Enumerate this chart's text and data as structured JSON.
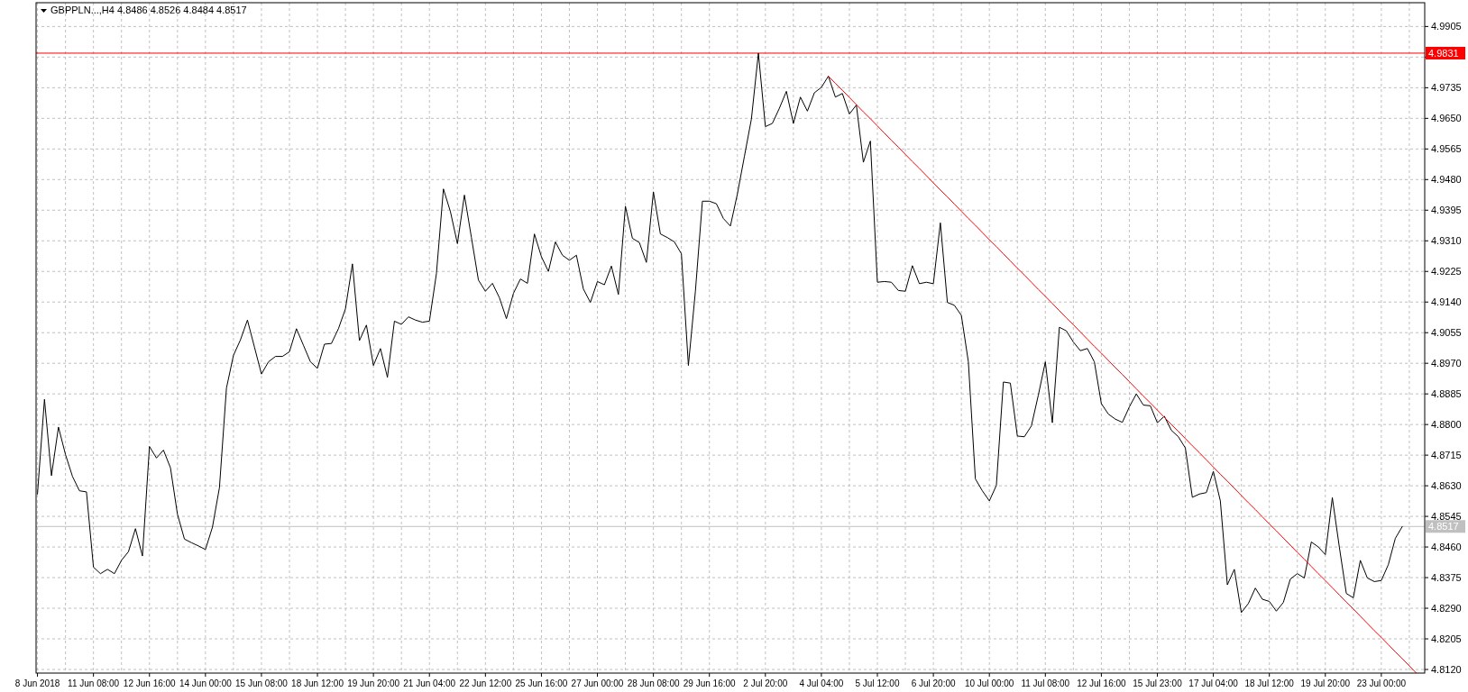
{
  "chart_data": {
    "type": "line",
    "title": "GBPPLN...,H4  4.8486 4.8526 4.8484 4.8517",
    "categories": [
      "8 Jun 2018",
      null,
      null,
      null,
      null,
      null,
      null,
      null,
      "11 Jun 08:00",
      null,
      null,
      null,
      null,
      null,
      null,
      null,
      "12 Jun 16:00",
      null,
      null,
      null,
      null,
      null,
      null,
      null,
      "14 Jun 00:00",
      null,
      null,
      null,
      null,
      null,
      null,
      null,
      "15 Jun 08:00",
      null,
      null,
      null,
      null,
      null,
      null,
      null,
      "18 Jun 12:00",
      null,
      null,
      null,
      null,
      null,
      null,
      null,
      "19 Jun 20:00",
      null,
      null,
      null,
      null,
      null,
      null,
      null,
      "21 Jun 04:00",
      null,
      null,
      null,
      null,
      null,
      null,
      null,
      "22 Jun 12:00",
      null,
      null,
      null,
      null,
      null,
      null,
      null,
      "25 Jun 16:00",
      null,
      null,
      null,
      null,
      null,
      null,
      null,
      "27 Jun 00:00",
      null,
      null,
      null,
      null,
      null,
      null,
      null,
      "28 Jun 08:00",
      null,
      null,
      null,
      null,
      null,
      null,
      null,
      "29 Jun 16:00",
      null,
      null,
      null,
      null,
      null,
      null,
      null,
      "2 Jul 20:00",
      null,
      null,
      null,
      null,
      null,
      null,
      null,
      "4 Jul 04:00",
      null,
      null,
      null,
      null,
      null,
      null,
      null,
      "5 Jul 12:00",
      null,
      null,
      null,
      null,
      null,
      null,
      null,
      "6 Jul 20:00",
      null,
      null,
      null,
      null,
      null,
      null,
      null,
      "10 Jul 00:00",
      null,
      null,
      null,
      null,
      null,
      null,
      null,
      "11 Jul 08:00",
      null,
      null,
      null,
      null,
      null,
      null,
      null,
      "12 Jul 16:00",
      null,
      null,
      null,
      null,
      null,
      null,
      null,
      "15 Jul 23:00",
      null,
      null,
      null,
      null,
      null,
      null,
      null,
      "17 Jul 04:00",
      null,
      null,
      null,
      null,
      null,
      null,
      null,
      "18 Jul 12:00",
      null,
      null,
      null,
      null,
      null,
      null,
      null,
      "19 Jul 20:00",
      null,
      null,
      null,
      null,
      null,
      null,
      null,
      "23 Jul 00:00",
      null,
      null,
      null,
      null,
      null,
      null
    ],
    "ylim": [
      4.811,
      4.9971
    ],
    "yticks": [
      {
        "value": 4.9905,
        "label": "4.9905"
      },
      {
        "value": 4.982,
        "label": null
      },
      {
        "value": 4.9735,
        "label": "4.9735"
      },
      {
        "value": 4.965,
        "label": "4.9650"
      },
      {
        "value": 4.9565,
        "label": "4.9565"
      },
      {
        "value": 4.948,
        "label": "4.9480"
      },
      {
        "value": 4.9395,
        "label": "4.9395"
      },
      {
        "value": 4.931,
        "label": "4.9310"
      },
      {
        "value": 4.9225,
        "label": "4.9225"
      },
      {
        "value": 4.914,
        "label": "4.9140"
      },
      {
        "value": 4.9055,
        "label": "4.9055"
      },
      {
        "value": 4.897,
        "label": "4.8970"
      },
      {
        "value": 4.8885,
        "label": "4.8885"
      },
      {
        "value": 4.88,
        "label": "4.8800"
      },
      {
        "value": 4.8715,
        "label": "4.8715"
      },
      {
        "value": 4.863,
        "label": "4.8630"
      },
      {
        "value": 4.8545,
        "label": "4.8545"
      },
      {
        "value": 4.846,
        "label": "4.8460"
      },
      {
        "value": 4.8375,
        "label": "4.8375"
      },
      {
        "value": 4.829,
        "label": "4.8290"
      },
      {
        "value": 4.8205,
        "label": "4.8205"
      },
      {
        "value": 4.812,
        "label": "4.8120"
      }
    ],
    "grid": true,
    "ref_lines": [
      {
        "axis": "y",
        "value": 4.9831,
        "label": "4.9831",
        "color": "#ff0000"
      },
      {
        "axis": "y",
        "value": 4.8517,
        "label": "4.8517",
        "color": "#c0c0c0"
      }
    ],
    "series": [
      {
        "color": "#000000",
        "values": [
          4.8607,
          4.887,
          4.8658,
          4.8793,
          4.8717,
          4.8656,
          4.8616,
          4.8613,
          4.8404,
          4.8386,
          4.8398,
          4.8386,
          4.8423,
          4.8447,
          4.8511,
          4.8435,
          4.8739,
          4.8707,
          4.8729,
          4.868,
          4.8551,
          4.8482,
          4.8472,
          4.8463,
          4.8453,
          4.8515,
          4.8625,
          4.8901,
          4.8992,
          4.9035,
          4.909,
          4.9015,
          4.894,
          4.8974,
          4.8989,
          4.8989,
          4.9002,
          4.9066,
          4.902,
          4.8974,
          4.8956,
          4.9023,
          4.9025,
          4.9066,
          4.9121,
          4.9246,
          4.9033,
          4.9076,
          4.8964,
          4.9011,
          4.8931,
          4.9087,
          4.9078,
          4.9099,
          4.909,
          4.9084,
          4.9087,
          4.9219,
          4.9454,
          4.9391,
          4.9302,
          4.9437,
          4.9319,
          4.9201,
          4.917,
          4.9192,
          4.9152,
          4.9094,
          4.9164,
          4.9204,
          4.9192,
          4.9329,
          4.9266,
          4.9225,
          4.9307,
          4.927,
          4.9256,
          4.927,
          4.9176,
          4.9139,
          4.9197,
          4.9188,
          4.924,
          4.9161,
          4.9406,
          4.9317,
          4.9305,
          4.925,
          4.9446,
          4.9329,
          4.9319,
          4.9307,
          4.9274,
          4.8964,
          4.917,
          4.942,
          4.942,
          4.9413,
          4.9372,
          4.9351,
          4.944,
          4.9544,
          4.9648,
          4.9831,
          4.9627,
          4.9636,
          4.9678,
          4.9725,
          4.9636,
          4.9709,
          4.967,
          4.9721,
          4.9736,
          4.9767,
          4.9709,
          4.9719,
          4.9662,
          4.9687,
          4.9528,
          4.9587,
          4.9195,
          4.9197,
          4.9195,
          4.9172,
          4.917,
          4.9241,
          4.9191,
          4.9195,
          4.9191,
          4.936,
          4.9139,
          4.9131,
          4.9103,
          4.8974,
          4.8649,
          4.8616,
          4.8588,
          4.8631,
          4.8918,
          4.8915,
          4.8768,
          4.8766,
          4.8796,
          4.8882,
          4.8974,
          4.8805,
          4.907,
          4.906,
          4.9029,
          4.9005,
          4.9011,
          4.8974,
          4.8858,
          4.8829,
          4.8815,
          4.8806,
          4.8849,
          4.8885,
          4.8854,
          4.8852,
          4.8805,
          4.8823,
          4.8784,
          4.8766,
          4.8735,
          4.8598,
          4.8607,
          4.8611,
          4.867,
          4.8588,
          4.8355,
          4.8398,
          4.8278,
          4.8303,
          4.8346,
          4.8315,
          4.8309,
          4.8282,
          4.8306,
          4.8371,
          4.8386,
          4.8374,
          4.8474,
          4.846,
          4.8439,
          4.8597,
          4.846,
          4.8331,
          4.8319,
          4.8423,
          4.8374,
          4.8364,
          4.8367,
          4.8411,
          4.8484,
          4.8517,
          null,
          null,
          null
        ]
      },
      {
        "type": "line",
        "color": "#ff0000",
        "values": [
          null,
          null,
          null,
          null,
          null,
          null,
          null,
          null,
          null,
          null,
          null,
          null,
          null,
          null,
          null,
          null,
          null,
          null,
          null,
          null,
          null,
          null,
          null,
          null,
          null,
          null,
          null,
          null,
          null,
          null,
          null,
          null,
          null,
          null,
          null,
          null,
          null,
          null,
          null,
          null,
          null,
          null,
          null,
          null,
          null,
          null,
          null,
          null,
          null,
          null,
          null,
          null,
          null,
          null,
          null,
          null,
          null,
          null,
          null,
          null,
          null,
          null,
          null,
          null,
          null,
          null,
          null,
          null,
          null,
          null,
          null,
          null,
          null,
          null,
          null,
          null,
          null,
          null,
          null,
          null,
          null,
          null,
          null,
          null,
          null,
          null,
          null,
          null,
          null,
          null,
          null,
          null,
          null,
          null,
          null,
          null,
          null,
          null,
          null,
          null,
          null,
          null,
          null,
          null,
          null,
          null,
          null,
          null,
          null,
          null,
          null,
          null,
          null,
          4.9767,
          4.9747,
          4.9728,
          4.9708,
          4.9688,
          4.9668,
          4.9649,
          4.9629,
          4.9609,
          4.9589,
          4.957,
          4.955,
          4.953,
          4.9511,
          4.9491,
          4.9471,
          4.9451,
          4.9432,
          4.9412,
          4.9392,
          4.9372,
          4.9353,
          4.9333,
          4.9313,
          4.9294,
          4.9274,
          4.9254,
          4.9234,
          4.9215,
          4.9195,
          4.9175,
          4.9156,
          4.9136,
          4.9116,
          4.9096,
          4.9077,
          4.9057,
          4.9037,
          4.9017,
          4.8998,
          4.8978,
          4.8958,
          4.8939,
          4.8919,
          4.8899,
          4.8879,
          4.886,
          4.884,
          4.882,
          4.88,
          4.8781,
          4.8761,
          4.8741,
          4.8722,
          4.8702,
          4.8682,
          4.8662,
          4.8643,
          4.8623,
          4.8603,
          4.8583,
          4.8564,
          4.8544,
          4.8524,
          4.8505,
          4.8485,
          4.8465,
          4.8445,
          4.8426,
          4.8406,
          4.8386,
          4.8367,
          4.8347,
          4.8327,
          4.8307,
          4.8288,
          4.8268,
          4.8248,
          4.8228,
          4.8209,
          4.8189,
          4.8169,
          4.815,
          4.813,
          4.811,
          null
        ]
      }
    ]
  }
}
